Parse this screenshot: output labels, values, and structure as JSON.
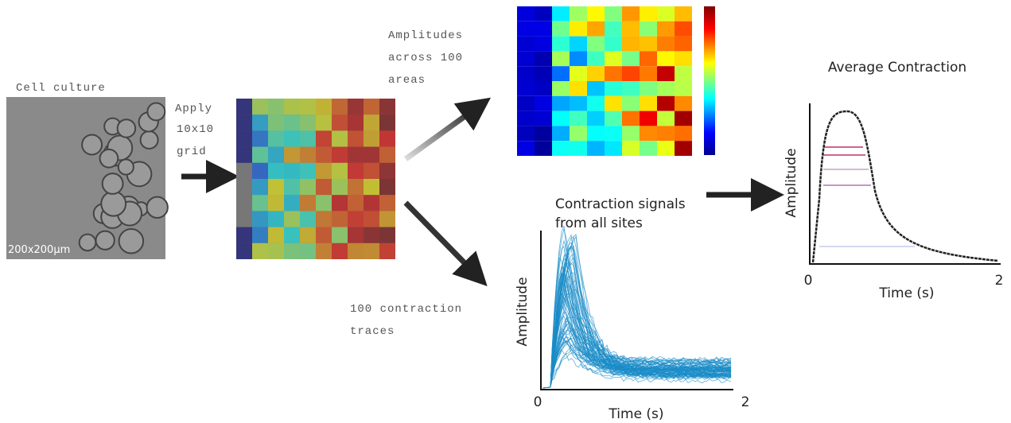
{
  "cell_culture": {
    "label": "Cell culture",
    "scale": "200x200µm"
  },
  "grid_step": {
    "label": [
      "Apply",
      "10x10",
      "grid"
    ]
  },
  "heatmap": {
    "label": [
      "Amplitudes",
      "across 100",
      "areas"
    ]
  },
  "traces": {
    "label": [
      "100 contraction",
      "traces"
    ],
    "plot": {
      "title": [
        "Contraction signals",
        "from all sites"
      ],
      "y_label": "Amplitude",
      "x_label": "Time (s)",
      "x_ticks": [
        "0",
        "2"
      ]
    }
  },
  "average": {
    "title": "Average Contraction",
    "y_label": "Amplitude",
    "x_label": "Time (s)",
    "x_ticks": [
      "0",
      "2"
    ]
  }
}
